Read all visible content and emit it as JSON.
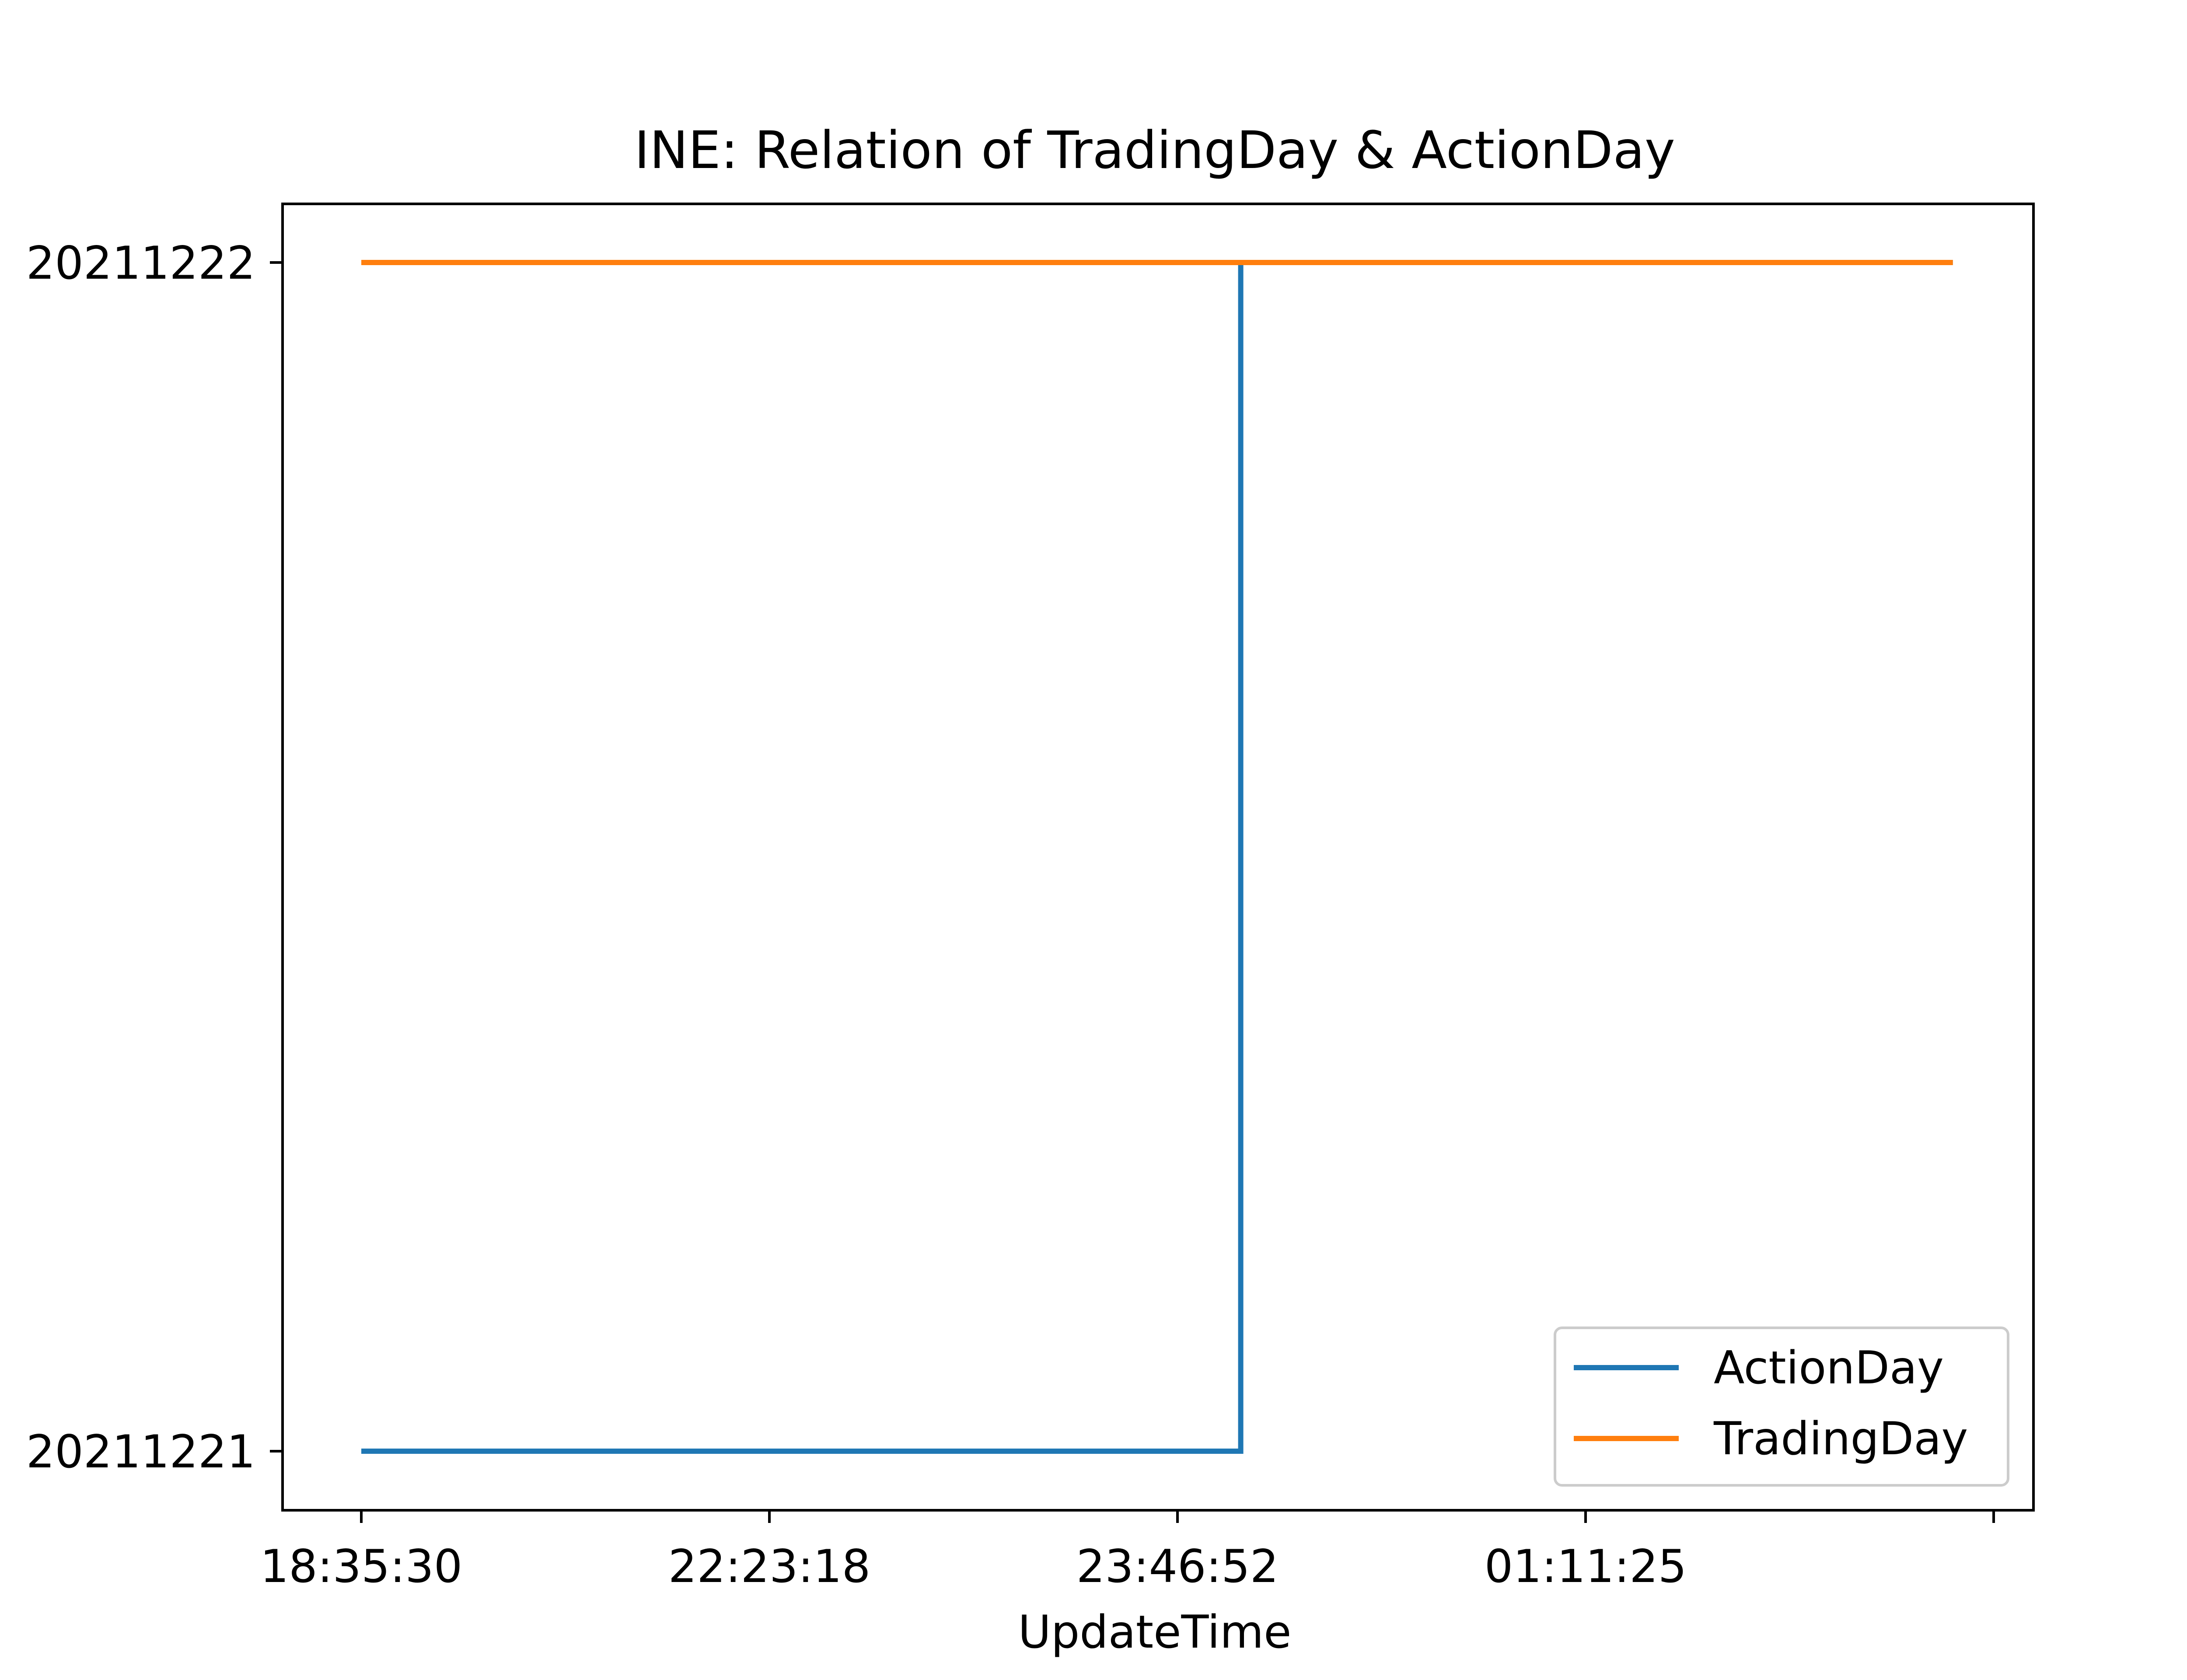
{
  "chart_data": {
    "type": "line",
    "title": "INE: Relation of TradingDay & ActionDay",
    "xlabel": "UpdateTime",
    "ylabel": "",
    "x_tick_labels": [
      "18:35:30",
      "22:23:18",
      "23:46:52",
      "01:11:25",
      ""
    ],
    "y_tick_labels": [
      "20211221",
      "20211222"
    ],
    "ylim": [
      20211221,
      20211222
    ],
    "x_index_range": [
      0,
      3.9
    ],
    "series": [
      {
        "name": "ActionDay",
        "color": "#1f77b4",
        "drawstyle": "step-post",
        "x": [
          0,
          2.155,
          3.9
        ],
        "y": [
          20211221,
          20211222,
          20211222
        ]
      },
      {
        "name": "TradingDay",
        "color": "#ff7f0e",
        "drawstyle": "line",
        "x": [
          0,
          3.9
        ],
        "y": [
          20211222,
          20211222
        ]
      }
    ],
    "grid": false,
    "legend_position": "lower right"
  }
}
